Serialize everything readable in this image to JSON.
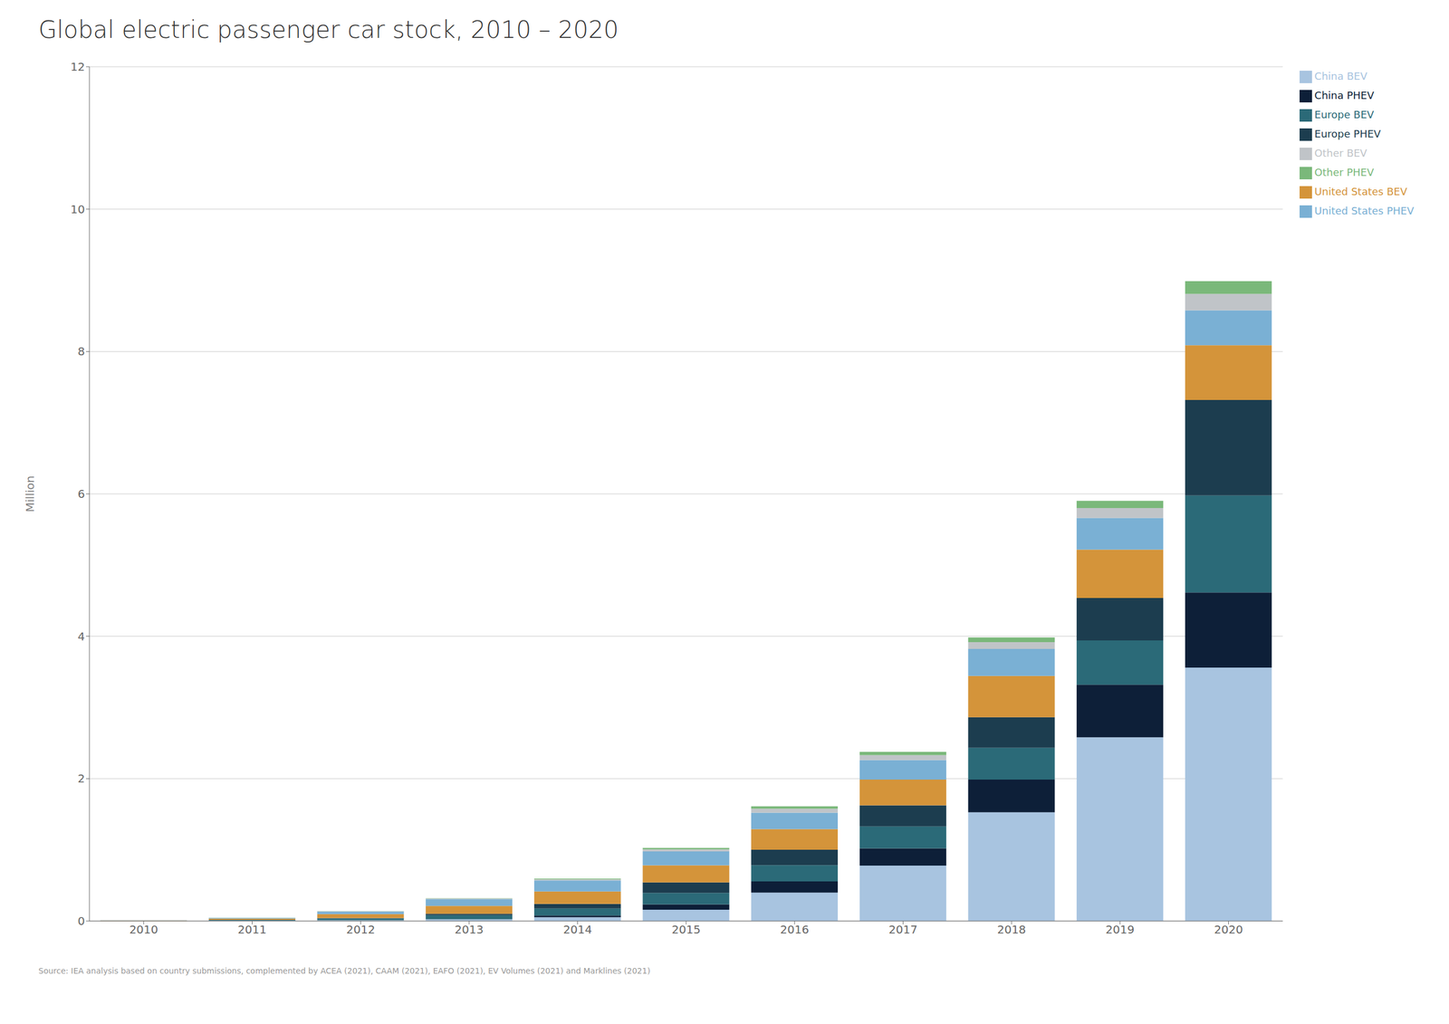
{
  "chart_data": {
    "type": "bar",
    "title": "Global electric passenger car stock, 2010 – 2020",
    "y_label": "Million",
    "annotations": [
      "Source: IEA analysis based on country submissions, complemented by ACEA (2021), CAAM (2021), EAFO (2021), EV Volumes (2021) and Marklines (2021)"
    ],
    "categories": [
      "2010",
      "2011",
      "2012",
      "2013",
      "2014",
      "2015",
      "2016",
      "2017",
      "2018",
      "2019",
      "2020"
    ],
    "series": [
      {
        "name": "China BEV",
        "color": "#a8c4e0",
        "values": [
          0.001,
          0.005,
          0.011,
          0.023,
          0.054,
          0.158,
          0.4,
          0.778,
          1.527,
          2.581,
          3.56
        ]
      },
      {
        "name": "China PHEV",
        "color": "#0d1f38",
        "values": [
          0.0,
          0.0,
          0.001,
          0.003,
          0.024,
          0.076,
          0.157,
          0.244,
          0.459,
          0.738,
          1.056
        ]
      },
      {
        "name": "Europe BEV",
        "color": "#2b6a78",
        "values": [
          0.002,
          0.01,
          0.025,
          0.055,
          0.098,
          0.162,
          0.227,
          0.308,
          0.447,
          0.623,
          1.363
        ]
      },
      {
        "name": "Europe PHEV",
        "color": "#1c3d4f",
        "values": [
          0.0,
          0.001,
          0.005,
          0.02,
          0.065,
          0.147,
          0.218,
          0.296,
          0.43,
          0.595,
          1.34
        ]
      },
      {
        "name": "United States BEV",
        "color": "#d4943a",
        "values": [
          0.005,
          0.018,
          0.055,
          0.112,
          0.175,
          0.24,
          0.29,
          0.36,
          0.58,
          0.68,
          0.77
        ]
      },
      {
        "name": "United States PHEV",
        "color": "#7ab0d4",
        "values": [
          0.001,
          0.01,
          0.037,
          0.095,
          0.155,
          0.195,
          0.23,
          0.275,
          0.38,
          0.445,
          0.49
        ]
      },
      {
        "name": "Other BEV",
        "color": "#c0c4c8",
        "values": [
          0.001,
          0.002,
          0.004,
          0.008,
          0.016,
          0.03,
          0.055,
          0.07,
          0.095,
          0.14,
          0.23
        ]
      },
      {
        "name": "Other PHEV",
        "color": "#7ab87a",
        "values": [
          0.0,
          0.001,
          0.002,
          0.004,
          0.01,
          0.02,
          0.035,
          0.045,
          0.065,
          0.1,
          0.18
        ]
      }
    ],
    "stacked": true,
    "ylim": [
      0,
      12
    ],
    "yticks": [
      0,
      2,
      4,
      6,
      8,
      10,
      12
    ],
    "grid": true,
    "legend": "upper right"
  }
}
